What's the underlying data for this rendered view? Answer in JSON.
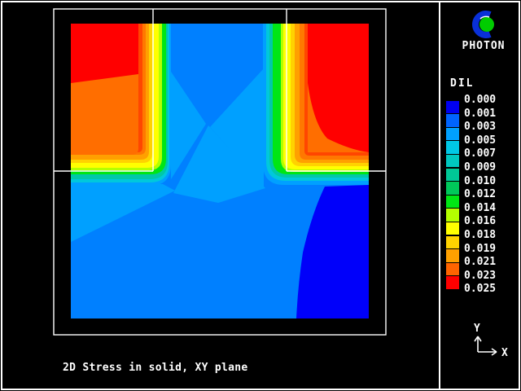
{
  "branding": {
    "app_name": "PHOTON"
  },
  "caption_text": "2D Stress in solid, XY plane",
  "chart_data": {
    "type": "heatmap",
    "subtype": "filled-contour-fringe-plot",
    "title": "2D Stress in solid, XY plane",
    "axes": {
      "x": "X",
      "y": "Y"
    },
    "legend_position": "right",
    "colorbar": {
      "title": "DIL",
      "levels": [
        0.0,
        0.001,
        0.003,
        0.005,
        0.007,
        0.009,
        0.01,
        0.012,
        0.014,
        0.016,
        0.018,
        0.019,
        0.021,
        0.023,
        0.025
      ],
      "labels": [
        "0.000",
        "0.001",
        "0.003",
        "0.005",
        "0.007",
        "0.009",
        "0.010",
        "0.012",
        "0.014",
        "0.016",
        "0.018",
        "0.019",
        "0.021",
        "0.023",
        "0.025"
      ],
      "colors": [
        "#0000f0",
        "#0064ff",
        "#00a0ff",
        "#00c8e6",
        "#00c8c0",
        "#00c896",
        "#00c85a",
        "#00e614",
        "#b4ff00",
        "#ffff00",
        "#ffd200",
        "#ffa000",
        "#ff6400",
        "#ff0000"
      ]
    }
  },
  "plot": {
    "bands": {
      "base": "#0080ff",
      "light": "#00a0ff",
      "dark": "#0000fa",
      "cyan": "#00c8dc",
      "teal": "#00c8a8",
      "green": "#00e614",
      "ygreen": "#b4ff00",
      "yellow": "#ffff00",
      "gold": "#ffd200",
      "amber": "#ffa000",
      "orange": "#ff7800",
      "dorange": "#ff4600",
      "red": "#ff0000",
      "block_orange": "#ff6e00"
    },
    "outline_color": "#ffffff"
  },
  "logo": {
    "green": "#00cc00",
    "blue": "#0930d8"
  }
}
